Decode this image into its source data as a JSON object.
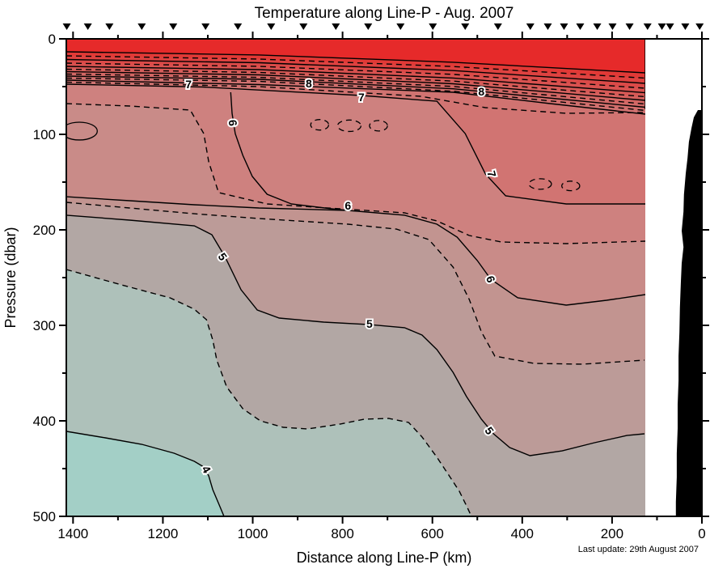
{
  "title": "Temperature along Line-P - Aug. 2007",
  "footer_note": "Last update: 29th August 2007",
  "chart_data": {
    "type": "filled-contour-section",
    "title": "Temperature along Line-P - Aug. 2007",
    "xlabel": "Distance along Line-P (km)",
    "ylabel": "Pressure (dbar)",
    "z_units": "deg C",
    "x_axis": {
      "min": 0,
      "max": 1415,
      "reversed": true,
      "major_ticks": [
        1400,
        1200,
        1000,
        800,
        600,
        400,
        200,
        0
      ],
      "minor_step": 100
    },
    "y_axis": {
      "min": 0,
      "max": 500,
      "inverted": true,
      "major_ticks": [
        0,
        100,
        200,
        300,
        400,
        500
      ],
      "minor_step": 50
    },
    "contour_interval": 0.5,
    "solid_levels_are_integers": true,
    "dashed_levels_are_halves": true,
    "labeled_levels": [
      4,
      5,
      6,
      7,
      8
    ],
    "data_edge_km": 126,
    "station_distances_km": [
      1414,
      1367,
      1319,
      1247,
      1177,
      1105,
      1033,
      959,
      887,
      815,
      743,
      671,
      599,
      527,
      454,
      382,
      343,
      307,
      271,
      233,
      199,
      161,
      121,
      89,
      71,
      37,
      5
    ],
    "color_below_4": "#a3cfc6",
    "fill_bands": [
      {
        "level": 4,
        "style": "solid",
        "color_above": "#aec1ba",
        "points": [
          [
            1415,
            411
          ],
          [
            1328,
            417.8
          ],
          [
            1247,
            424.6
          ],
          [
            1175,
            433.9
          ],
          [
            1130,
            442.4
          ],
          [
            1109,
            448.3
          ],
          [
            1098,
            457.6
          ],
          [
            1089,
            472
          ],
          [
            1076,
            486.4
          ],
          [
            1064,
            500
          ]
        ]
      },
      {
        "level": 4.5,
        "style": "dashed",
        "color_above": "#b2a7a4",
        "points": [
          [
            1415,
            241.5
          ],
          [
            1292,
            257.6
          ],
          [
            1184,
            271.2
          ],
          [
            1130,
            283.1
          ],
          [
            1103,
            294.1
          ],
          [
            1089,
            315.3
          ],
          [
            1080,
            336.4
          ],
          [
            1058,
            364.4
          ],
          [
            1022,
            387.3
          ],
          [
            983,
            400
          ],
          [
            932,
            406.8
          ],
          [
            878,
            408.5
          ],
          [
            806,
            403.4
          ],
          [
            752,
            398.3
          ],
          [
            698,
            397.5
          ],
          [
            653,
            401.7
          ],
          [
            623,
            416.9
          ],
          [
            590,
            438.1
          ],
          [
            560,
            459.3
          ],
          [
            540,
            473.7
          ],
          [
            524,
            489
          ],
          [
            513,
            500
          ]
        ]
      },
      {
        "level": 5,
        "style": "solid",
        "color_above": "#bc9b98",
        "points": [
          [
            1415,
            184.7
          ],
          [
            1274,
            189.8
          ],
          [
            1130,
            195.8
          ],
          [
            1091,
            205.1
          ],
          [
            1062,
            228
          ],
          [
            1026,
            262.7
          ],
          [
            990,
            283.9
          ],
          [
            941,
            292.4
          ],
          [
            842,
            296.6
          ],
          [
            740,
            299.2
          ],
          [
            662,
            302.5
          ],
          [
            623,
            310.2
          ],
          [
            590,
            325.4
          ],
          [
            554,
            349.2
          ],
          [
            524,
            374.6
          ],
          [
            491,
            398.3
          ],
          [
            464,
            413.6
          ],
          [
            428,
            428
          ],
          [
            383,
            436.4
          ],
          [
            311,
            431.4
          ],
          [
            239,
            422.9
          ],
          [
            167,
            415.3
          ],
          [
            128,
            413.6
          ]
        ]
      },
      {
        "level": 5.5,
        "style": "dashed",
        "color_above": "#c29490",
        "points": [
          [
            1415,
            171.2
          ],
          [
            1274,
            177.1
          ],
          [
            1130,
            183.1
          ],
          [
            986,
            188.1
          ],
          [
            788,
            194.1
          ],
          [
            680,
            199.2
          ],
          [
            608,
            210.2
          ],
          [
            554,
            239
          ],
          [
            518,
            272.9
          ],
          [
            491,
            306.8
          ],
          [
            461,
            332.2
          ],
          [
            374,
            339.8
          ],
          [
            266,
            340.7
          ],
          [
            128,
            336.4
          ]
        ]
      },
      {
        "level": 6,
        "style": "solid",
        "color_above": "#c98b88",
        "points": [
          [
            1415,
            165.3
          ],
          [
            1274,
            169.5
          ],
          [
            1130,
            173.7
          ],
          [
            986,
            177.1
          ],
          [
            788,
            179.7
          ],
          [
            662,
            184.7
          ],
          [
            590,
            194.1
          ],
          [
            545,
            207.6
          ],
          [
            500,
            232.2
          ],
          [
            470,
            251.7
          ],
          [
            410,
            271.2
          ],
          [
            302,
            278.8
          ],
          [
            212,
            273.7
          ],
          [
            126,
            267.8
          ]
        ]
      },
      {
        "level": 6.5,
        "style": "dashed",
        "color_above": "#ce817f",
        "points": [
          [
            1415,
            67.8
          ],
          [
            1274,
            70.3
          ],
          [
            1139,
            74.6
          ],
          [
            1109,
            99.2
          ],
          [
            1098,
            128.8
          ],
          [
            1076,
            161
          ],
          [
            968,
            172.9
          ],
          [
            806,
            178
          ],
          [
            662,
            182.2
          ],
          [
            590,
            190.7
          ],
          [
            518,
            205.9
          ],
          [
            446,
            212.7
          ],
          [
            302,
            214.4
          ],
          [
            126,
            211.9
          ]
        ]
      },
      {
        "level": 7,
        "style": "solid",
        "color_above": "#d17472",
        "points": [
          [
            1415,
            47.5
          ],
          [
            1112,
            50.4
          ],
          [
            758,
            59.3
          ],
          [
            590,
            65.3
          ],
          [
            527,
            99.2
          ],
          [
            482,
            141.5
          ],
          [
            437,
            164.4
          ],
          [
            302,
            172.9
          ],
          [
            126,
            172.9
          ]
        ]
      },
      {
        "level": 7.5,
        "style": "dashed",
        "color_above": "#d07371",
        "points": [
          [
            1415,
            45.3
          ],
          [
            986,
            50
          ],
          [
            626,
            60.2
          ],
          [
            482,
            72
          ],
          [
            302,
            78
          ],
          [
            126,
            77.1
          ]
        ]
      },
      {
        "level": 8,
        "style": "solid",
        "color_above": "#d07170",
        "points": [
          [
            1415,
            43.2
          ],
          [
            986,
            47.9
          ],
          [
            554,
            55.9
          ],
          [
            338,
            67.8
          ],
          [
            126,
            78.8
          ]
        ]
      },
      {
        "level": 8.5,
        "style": "dashed",
        "color_above": "#d16e6c",
        "points": [
          [
            1415,
            41.1
          ],
          [
            986,
            44.5
          ],
          [
            554,
            54.8
          ],
          [
            126,
            75
          ]
        ]
      },
      {
        "level": 9,
        "style": "solid",
        "color_above": "#d26a68",
        "points": [
          [
            1415,
            39
          ],
          [
            986,
            42.4
          ],
          [
            554,
            52.3
          ],
          [
            126,
            71.6
          ]
        ]
      },
      {
        "level": 9.5,
        "style": "dashed",
        "color_above": "#d36663",
        "points": [
          [
            1415,
            36.9
          ],
          [
            986,
            40.3
          ],
          [
            554,
            49.8
          ],
          [
            126,
            68.2
          ]
        ]
      },
      {
        "level": 10,
        "style": "solid",
        "color_above": "#d5605d",
        "points": [
          [
            1415,
            34.3
          ],
          [
            986,
            37.7
          ],
          [
            554,
            47
          ],
          [
            126,
            64.4
          ]
        ]
      },
      {
        "level": 10.5,
        "style": "dashed",
        "color_above": "#d75956",
        "points": [
          [
            1415,
            31.8
          ],
          [
            986,
            35.2
          ],
          [
            554,
            44.2
          ],
          [
            126,
            60.6
          ]
        ]
      },
      {
        "level": 11,
        "style": "solid",
        "color_above": "#d95250",
        "points": [
          [
            1415,
            28.8
          ],
          [
            986,
            32.2
          ],
          [
            554,
            41
          ],
          [
            126,
            56.4
          ]
        ]
      },
      {
        "level": 11.5,
        "style": "dashed",
        "color_above": "#db4a48",
        "points": [
          [
            1415,
            25.4
          ],
          [
            986,
            28.8
          ],
          [
            554,
            37.2
          ],
          [
            126,
            51.7
          ]
        ]
      },
      {
        "level": 12,
        "style": "solid",
        "color_above": "#de4240",
        "points": [
          [
            1415,
            21.6
          ],
          [
            986,
            25
          ],
          [
            554,
            33.2
          ],
          [
            126,
            46.6
          ]
        ]
      },
      {
        "level": 12.5,
        "style": "dashed",
        "color_above": "#e13936",
        "points": [
          [
            1415,
            17.8
          ],
          [
            986,
            21.2
          ],
          [
            554,
            29
          ],
          [
            126,
            41.1
          ]
        ]
      },
      {
        "level": 13,
        "style": "solid",
        "color_above": "#e62a2a",
        "points": [
          [
            1415,
            13.6
          ],
          [
            986,
            16.9
          ],
          [
            554,
            24.5
          ],
          [
            126,
            35.6
          ]
        ]
      }
    ],
    "extra_line_segments": [
      {
        "level": 6,
        "style": "solid",
        "points": [
          [
            1049,
            55.9
          ],
          [
            1046,
            78
          ],
          [
            1039,
            99.2
          ],
          [
            1022,
            122
          ],
          [
            1001,
            144.1
          ],
          [
            968,
            162.7
          ],
          [
            914,
            172.9
          ],
          [
            824,
            178
          ],
          [
            788,
            179.7
          ]
        ]
      }
    ],
    "closed_contours": [
      {
        "level": 6,
        "style": "solid",
        "center": [
          1386,
          96.6
        ],
        "rx_km": 40,
        "ry_dbar": 9.3
      },
      {
        "level": 6.5,
        "style": "dashed",
        "center": [
          851,
          90
        ],
        "rx_km": 20,
        "ry_dbar": 5.5
      },
      {
        "level": 6.5,
        "style": "dashed",
        "center": [
          785,
          91
        ],
        "rx_km": 26,
        "ry_dbar": 6
      },
      {
        "level": 6.5,
        "style": "dashed",
        "center": [
          720,
          91
        ],
        "rx_km": 20,
        "ry_dbar": 5.5
      },
      {
        "level": 6.5,
        "style": "dashed",
        "center": [
          360,
          152
        ],
        "rx_km": 25,
        "ry_dbar": 5.5
      },
      {
        "level": 6.5,
        "style": "dashed",
        "center": [
          292,
          154
        ],
        "rx_km": 20,
        "ry_dbar": 5
      }
    ],
    "contour_labels": [
      {
        "text": "7",
        "km": 1143,
        "dbar": 47.5,
        "rot": 0
      },
      {
        "text": "8",
        "km": 875,
        "dbar": 46.6,
        "rot": 0
      },
      {
        "text": "7",
        "km": 758,
        "dbar": 61,
        "rot": 0
      },
      {
        "text": "8",
        "km": 491,
        "dbar": 55.1,
        "rot": 0
      },
      {
        "text": "6",
        "km": 1044,
        "dbar": 88,
        "rot": 85
      },
      {
        "text": "7",
        "km": 468,
        "dbar": 141.5,
        "rot": 75
      },
      {
        "text": "6",
        "km": 788,
        "dbar": 174.6,
        "rot": 0
      },
      {
        "text": "5",
        "km": 1067,
        "dbar": 228,
        "rot": 55
      },
      {
        "text": "6",
        "km": 470,
        "dbar": 251.7,
        "rot": 70
      },
      {
        "text": "5",
        "km": 740,
        "dbar": 298.3,
        "rot": 0
      },
      {
        "text": "5",
        "km": 473,
        "dbar": 410.2,
        "rot": 55
      },
      {
        "text": "4",
        "km": 1103,
        "dbar": 450.8,
        "rot": 60
      }
    ],
    "land_polygon": [
      [
        9,
        74.6
      ],
      [
        18,
        82.2
      ],
      [
        23,
        93
      ],
      [
        29,
        108
      ],
      [
        32,
        125
      ],
      [
        36,
        141
      ],
      [
        40,
        163
      ],
      [
        41,
        181
      ],
      [
        45,
        201
      ],
      [
        41,
        218
      ],
      [
        45,
        235
      ],
      [
        47,
        256
      ],
      [
        49,
        281
      ],
      [
        50,
        307
      ],
      [
        52,
        332
      ],
      [
        52,
        358
      ],
      [
        54,
        383
      ],
      [
        54,
        408
      ],
      [
        56,
        434
      ],
      [
        56,
        459
      ],
      [
        58,
        485
      ],
      [
        58,
        500
      ],
      [
        0,
        500
      ],
      [
        0,
        74.6
      ]
    ],
    "land_color": "#000000",
    "axis_color": "#000000"
  }
}
